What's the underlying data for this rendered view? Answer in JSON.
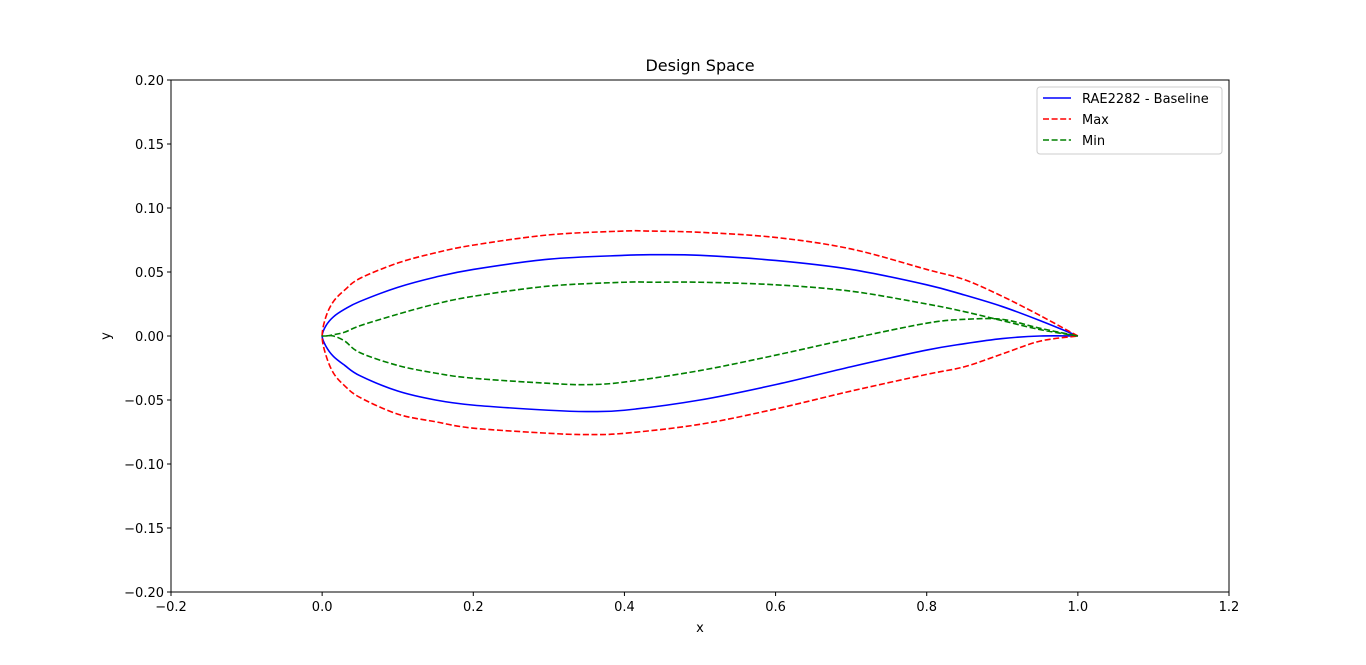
{
  "chart_data": {
    "type": "line",
    "title": "Design Space",
    "xlabel": "x",
    "ylabel": "y",
    "xlim": [
      -0.2,
      1.2
    ],
    "ylim": [
      -0.2,
      0.2
    ],
    "xticks": [
      "−0.2",
      "0.0",
      "0.2",
      "0.4",
      "0.6",
      "0.8",
      "1.0",
      "1.2"
    ],
    "yticks": [
      "−0.20",
      "−0.15",
      "−0.10",
      "−0.05",
      "0.00",
      "0.05",
      "0.10",
      "0.15",
      "0.20"
    ],
    "grid": false,
    "legend_position": "top-right",
    "series": [
      {
        "name": "RAE2282 - Baseline",
        "color": "#0000ff",
        "linestyle": "solid",
        "x": [
          1.0,
          0.95,
          0.9,
          0.85,
          0.8,
          0.7,
          0.6,
          0.5,
          0.44,
          0.4,
          0.3,
          0.2,
          0.15,
          0.1,
          0.05,
          0.03,
          0.015,
          0.005,
          0.0,
          0.005,
          0.015,
          0.03,
          0.05,
          0.1,
          0.15,
          0.2,
          0.3,
          0.35,
          0.4,
          0.5,
          0.6,
          0.7,
          0.8,
          0.85,
          0.9,
          0.95,
          1.0
        ],
        "y": [
          0.0,
          0.012,
          0.023,
          0.032,
          0.04,
          0.052,
          0.059,
          0.063,
          0.0635,
          0.063,
          0.06,
          0.052,
          0.046,
          0.038,
          0.027,
          0.021,
          0.015,
          0.008,
          0.0,
          -0.008,
          -0.016,
          -0.023,
          -0.031,
          -0.043,
          -0.05,
          -0.054,
          -0.058,
          -0.059,
          -0.058,
          -0.05,
          -0.038,
          -0.024,
          -0.011,
          -0.006,
          -0.002,
          0.0,
          0.0
        ]
      },
      {
        "name": "Max",
        "color": "#ff0000",
        "linestyle": "dashed",
        "x": [
          1.0,
          0.95,
          0.9,
          0.85,
          0.8,
          0.7,
          0.6,
          0.5,
          0.43,
          0.4,
          0.3,
          0.2,
          0.15,
          0.1,
          0.05,
          0.03,
          0.015,
          0.005,
          0.0,
          0.005,
          0.015,
          0.03,
          0.05,
          0.1,
          0.15,
          0.2,
          0.3,
          0.35,
          0.4,
          0.5,
          0.6,
          0.7,
          0.8,
          0.85,
          0.9,
          0.95,
          1.0
        ],
        "y": [
          0.0,
          0.016,
          0.031,
          0.044,
          0.052,
          0.068,
          0.077,
          0.081,
          0.082,
          0.082,
          0.079,
          0.071,
          0.065,
          0.057,
          0.045,
          0.036,
          0.027,
          0.015,
          0.0,
          -0.015,
          -0.029,
          -0.039,
          -0.048,
          -0.061,
          -0.067,
          -0.072,
          -0.076,
          -0.077,
          -0.076,
          -0.069,
          -0.057,
          -0.043,
          -0.03,
          -0.024,
          -0.014,
          -0.004,
          0.0
        ]
      },
      {
        "name": "Min",
        "color": "#008000",
        "linestyle": "dashed",
        "x": [
          1.0,
          0.95,
          0.9,
          0.85,
          0.8,
          0.7,
          0.6,
          0.5,
          0.44,
          0.4,
          0.3,
          0.2,
          0.15,
          0.1,
          0.05,
          0.03,
          0.015,
          0.005,
          0.0,
          0.005,
          0.015,
          0.03,
          0.05,
          0.1,
          0.15,
          0.2,
          0.3,
          0.35,
          0.4,
          0.5,
          0.6,
          0.7,
          0.8,
          0.85,
          0.9,
          0.95,
          1.0
        ],
        "y": [
          0.0,
          0.005,
          0.012,
          0.019,
          0.025,
          0.035,
          0.04,
          0.042,
          0.042,
          0.042,
          0.039,
          0.031,
          0.025,
          0.017,
          0.008,
          0.003,
          0.001,
          0.0,
          0.0,
          0.0,
          0.0,
          -0.004,
          -0.013,
          -0.023,
          -0.029,
          -0.033,
          -0.037,
          -0.038,
          -0.036,
          -0.027,
          -0.015,
          -0.002,
          0.01,
          0.013,
          0.013,
          0.006,
          0.0
        ]
      }
    ]
  }
}
